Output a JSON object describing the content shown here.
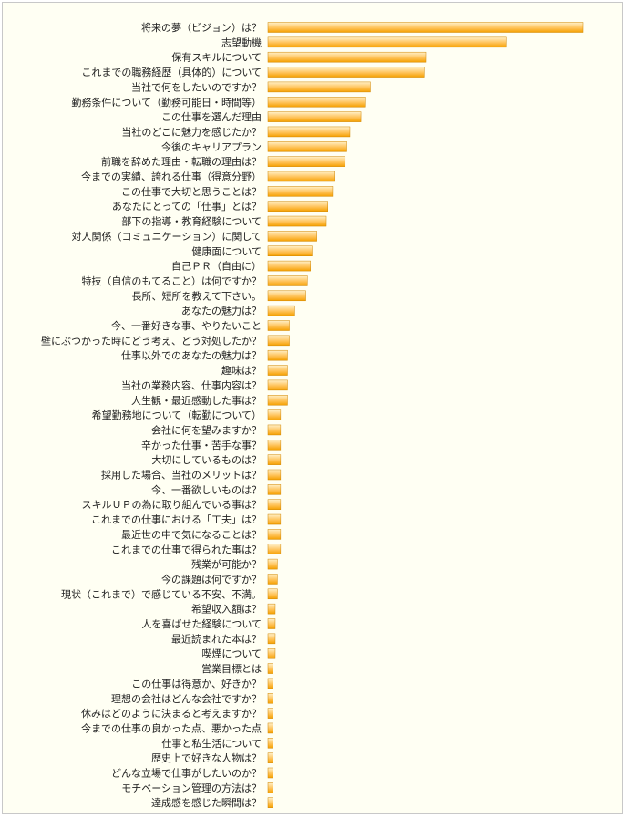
{
  "chart_data": {
    "type": "bar",
    "orientation": "horizontal",
    "title": "",
    "xlabel": "",
    "ylabel": "",
    "grid": false,
    "legend": "none",
    "colors": {
      "bar_light": "#fff0c8",
      "bar_dark": "#f5a000",
      "bar_edge": "#d08600",
      "background": "#fffff3",
      "border": "#c8c8c8",
      "text": "#222222"
    },
    "xlim": [
      0,
      100
    ],
    "categories": [
      "将来の夢（ビジョン）は？",
      "志望動機",
      "保有スキルについて",
      "これまでの職務経歴（具体的）について",
      "当社で何をしたいのですか？",
      "勤務条件について（勤務可能日・時間等）",
      "この仕事を選んだ理由",
      "当社のどこに魅力を感じたか？",
      "今後のキャリアプラン",
      "前職を辞めた理由・転職の理由は？",
      "今までの実績、誇れる仕事（得意分野）",
      "この仕事で大切と思うことは？",
      "あなたにとっての「仕事」とは？",
      "部下の指導・教育経験について",
      "対人関係（コミュニケーション）に関して",
      "健康面について",
      "自己ＰＲ（自由に）",
      "特技（自信のもてること）は何ですか？",
      "長所、短所を教えて下さい。",
      "あなたの魅力は？",
      "今、一番好きな事、やりたいこと",
      "壁にぶつかった時にどう考え、どう対処したか？",
      "仕事以外でのあなたの魅力は？",
      "趣味は？",
      "当社の業務内容、仕事内容は？",
      "人生観・最近感動した事は？",
      "希望勤務地について（転勤について）",
      "会社に何を望みますか？",
      "辛かった仕事・苦手な事？",
      "大切にしているものは？",
      "採用した場合、当社のメリットは？",
      "今、一番欲しいものは？",
      "スキルＵＰの為に取り組んでいる事は？",
      "これまでの仕事における「工夫」は？",
      "最近世の中で気になることは？",
      "これまでの仕事で得られた事は？",
      "残業が可能か？",
      "今の課題は何ですか？",
      "現状（これまで）で感じている不安、不満。",
      "希望収入額は？",
      "人を喜ばせた経験について",
      "最近読まれた本は？",
      "喫煙について",
      "営業目標とは",
      "この仕事は得意か、好きか？",
      "理想の会社はどんな会社ですか？",
      "休みはどのように決まると考えますか？",
      "今までの仕事の良かった点、悪かった点",
      "仕事と私生活について",
      "歴史上で好きな人物は？",
      "どんな立場で仕事がしたいのか？",
      "モチベーション管理の方法は？",
      "達成感を感じた瞬間は？"
    ],
    "values": [
      100,
      75.5,
      50,
      49.5,
      32.5,
      31,
      29.5,
      26,
      25,
      24.5,
      21,
      20.5,
      19,
      18.5,
      15.5,
      14,
      13.5,
      12.5,
      12,
      8.5,
      6.8,
      6.8,
      6.2,
      6.2,
      6.2,
      6.2,
      4,
      4,
      4,
      4,
      4,
      4,
      4,
      4,
      4,
      4,
      3,
      3,
      3,
      2.3,
      2.3,
      2.3,
      2.3,
      1.6,
      1.6,
      1.6,
      1.6,
      1.6,
      1.6,
      1.6,
      1.6,
      1.6,
      1.6
    ]
  }
}
